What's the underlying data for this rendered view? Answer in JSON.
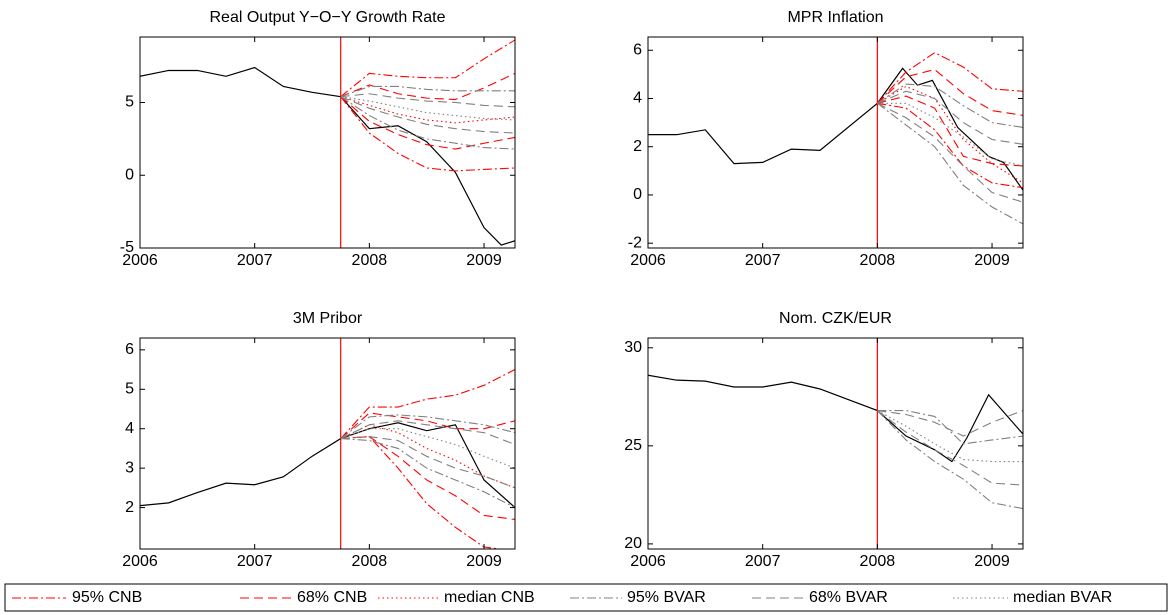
{
  "chart_data": [
    {
      "type": "line",
      "title": "Real Output Y−O−Y Growth Rate",
      "xlim": [
        2006,
        2009.27
      ],
      "xticks": [
        2006,
        2007,
        2008,
        2009
      ],
      "ylim": [
        -5,
        9.5
      ],
      "yticks": [
        -5,
        0,
        5
      ],
      "vline": 2007.75,
      "vline_color": "#ff0000",
      "x": [
        2007.75,
        2008,
        2008.25,
        2008.5,
        2008.75,
        2009,
        2009.27
      ],
      "series": [
        {
          "color": "#000000",
          "dash": "solid",
          "x": [
            2006,
            2006.25,
            2006.5,
            2006.75,
            2007,
            2007.25,
            2007.5,
            2007.75,
            2008,
            2008.25,
            2008.5,
            2008.75,
            2009,
            2009.15,
            2009.27
          ],
          "values": [
            6.8,
            7.2,
            7.2,
            6.8,
            7.4,
            6.1,
            5.7,
            5.4,
            3.2,
            3.4,
            2.3,
            0.2,
            -3.6,
            -4.8,
            -4.5
          ]
        },
        {
          "name": "95% CNB",
          "color": "#ff0000",
          "dash": "dashdot",
          "upper": [
            5.4,
            7.0,
            6.8,
            6.7,
            6.7,
            8.0,
            9.3
          ],
          "lower": [
            5.4,
            2.9,
            1.5,
            0.5,
            0.3,
            0.4,
            0.5
          ]
        },
        {
          "name": "68% CNB",
          "color": "#ff0000",
          "dash": "dashed",
          "upper": [
            5.4,
            6.2,
            5.6,
            5.3,
            5.2,
            6.0,
            7.0
          ],
          "lower": [
            5.4,
            3.7,
            2.8,
            2.1,
            1.8,
            2.2,
            2.6
          ]
        },
        {
          "name": "median CNB",
          "color": "#ff0000",
          "dash": "dotted",
          "values": [
            5.4,
            4.8,
            4.2,
            3.8,
            3.6,
            3.8,
            4.0
          ]
        },
        {
          "name": "95% BVAR",
          "color": "#808080",
          "dash": "dashdot",
          "upper": [
            5.4,
            6.1,
            6.1,
            5.9,
            5.8,
            5.8,
            5.8
          ],
          "lower": [
            5.4,
            4.1,
            3.1,
            2.5,
            2.2,
            1.9,
            1.8
          ]
        },
        {
          "name": "68% BVAR",
          "color": "#808080",
          "dash": "dashed",
          "upper": [
            5.4,
            5.6,
            5.3,
            5.1,
            5.0,
            4.8,
            4.7
          ],
          "lower": [
            5.4,
            4.6,
            4.0,
            3.5,
            3.2,
            3.0,
            2.9
          ]
        },
        {
          "name": "median BVAR",
          "color": "#808080",
          "dash": "dotted",
          "values": [
            5.4,
            5.1,
            4.7,
            4.3,
            4.1,
            3.9,
            3.8
          ]
        }
      ]
    },
    {
      "type": "line",
      "title": "MPR Inflation",
      "xlim": [
        2006,
        2009.27
      ],
      "xticks": [
        2006,
        2007,
        2008,
        2009
      ],
      "ylim": [
        -2.2,
        6.55
      ],
      "yticks": [
        -2,
        0,
        2,
        4,
        6
      ],
      "vline": 2008,
      "vline_color": "#ff0000",
      "x": [
        2008,
        2008.25,
        2008.5,
        2008.75,
        2009,
        2009.27
      ],
      "series": [
        {
          "color": "#000000",
          "dash": "solid",
          "x": [
            2006,
            2006.25,
            2006.5,
            2006.75,
            2007,
            2007.25,
            2007.5,
            2008,
            2008.22,
            2008.35,
            2008.48,
            2008.7,
            2008.97,
            2009.1,
            2009.27
          ],
          "values": [
            2.5,
            2.5,
            2.7,
            1.3,
            1.35,
            1.9,
            1.85,
            3.8,
            5.25,
            4.55,
            4.75,
            2.8,
            1.6,
            1.35,
            0.2
          ]
        },
        {
          "name": "95% CNB",
          "color": "#ff0000",
          "dash": "dashdot",
          "upper": [
            3.8,
            5.1,
            5.9,
            5.3,
            4.4,
            4.3
          ],
          "lower": [
            3.8,
            3.6,
            2.7,
            1.2,
            0.5,
            0.3
          ]
        },
        {
          "name": "68% CNB",
          "color": "#ff0000",
          "dash": "dashed",
          "upper": [
            3.8,
            4.9,
            5.2,
            4.2,
            3.5,
            3.3
          ],
          "lower": [
            3.8,
            4.1,
            3.6,
            1.6,
            1.3,
            1.2
          ]
        },
        {
          "name": "median CNB",
          "color": "#ff0000",
          "dash": "dotted",
          "values": [
            3.8,
            4.5,
            4.0,
            2.3,
            1.3,
            0.5
          ]
        },
        {
          "name": "95% BVAR",
          "color": "#808080",
          "dash": "dashdot",
          "upper": [
            3.8,
            4.6,
            4.5,
            3.7,
            3.0,
            2.8
          ],
          "lower": [
            3.8,
            2.9,
            2.0,
            0.4,
            -0.5,
            -1.2
          ]
        },
        {
          "name": "68% BVAR",
          "color": "#808080",
          "dash": "dashed",
          "upper": [
            3.8,
            4.3,
            4.0,
            3.0,
            2.3,
            2.1
          ],
          "lower": [
            3.8,
            3.2,
            2.4,
            1.2,
            0.1,
            -0.3
          ]
        },
        {
          "name": "median BVAR",
          "color": "#808080",
          "dash": "dotted",
          "values": [
            3.8,
            3.8,
            3.2,
            2.4,
            1.5,
            1.2
          ]
        }
      ]
    },
    {
      "type": "line",
      "title": "3M Pribor",
      "xlim": [
        2006,
        2009.27
      ],
      "xticks": [
        2006,
        2007,
        2008,
        2009
      ],
      "ylim": [
        0.95,
        6.3
      ],
      "yticks": [
        2,
        3,
        4,
        5,
        6
      ],
      "vline": 2007.75,
      "vline_color": "#ff0000",
      "x": [
        2007.75,
        2008,
        2008.25,
        2008.5,
        2008.75,
        2009,
        2009.27
      ],
      "series": [
        {
          "color": "#000000",
          "dash": "solid",
          "x": [
            2006,
            2006.25,
            2006.5,
            2006.75,
            2007,
            2007.25,
            2007.5,
            2007.75,
            2008,
            2008.25,
            2008.5,
            2008.75,
            2009,
            2009.27
          ],
          "values": [
            2.05,
            2.12,
            2.38,
            2.62,
            2.58,
            2.78,
            3.3,
            3.75,
            4.0,
            4.15,
            3.95,
            4.1,
            2.7,
            2.0
          ]
        },
        {
          "name": "95% CNB",
          "color": "#ff0000",
          "dash": "dashdot",
          "upper": [
            3.75,
            4.55,
            4.55,
            4.75,
            4.85,
            5.1,
            5.5
          ],
          "lower": [
            3.75,
            3.8,
            3.0,
            2.1,
            1.5,
            1.0,
            0.9
          ]
        },
        {
          "name": "68% CNB",
          "color": "#ff0000",
          "dash": "dashed",
          "upper": [
            3.75,
            4.4,
            4.3,
            4.2,
            4.0,
            4.0,
            4.2
          ],
          "lower": [
            3.75,
            3.8,
            3.3,
            2.7,
            2.3,
            1.8,
            1.7
          ]
        },
        {
          "name": "median CNB",
          "color": "#ff0000",
          "dash": "dotted",
          "values": [
            3.75,
            4.1,
            3.9,
            3.5,
            3.2,
            2.8,
            2.5
          ]
        },
        {
          "name": "95% BVAR",
          "color": "#808080",
          "dash": "dashdot",
          "upper": [
            3.75,
            4.3,
            4.35,
            4.3,
            4.2,
            4.1,
            3.9
          ],
          "lower": [
            3.75,
            3.7,
            3.5,
            3.0,
            2.7,
            2.4,
            2.0
          ]
        },
        {
          "name": "68% BVAR",
          "color": "#808080",
          "dash": "dashed",
          "upper": [
            3.75,
            4.1,
            4.2,
            4.1,
            4.0,
            3.9,
            3.6
          ],
          "lower": [
            3.75,
            3.8,
            3.7,
            3.3,
            3.0,
            2.8,
            2.5
          ]
        },
        {
          "name": "median BVAR",
          "color": "#808080",
          "dash": "dotted",
          "values": [
            3.75,
            4.0,
            4.0,
            3.8,
            3.6,
            3.3,
            3.0
          ]
        }
      ]
    },
    {
      "type": "line",
      "title": "Nom. CZK/EUR",
      "xlim": [
        2006,
        2009.27
      ],
      "xticks": [
        2006,
        2007,
        2008,
        2009
      ],
      "ylim": [
        19.74,
        30.5
      ],
      "yticks": [
        20,
        25,
        30
      ],
      "vline": 2008,
      "vline_color": "#ff0000",
      "x": [
        2008,
        2008.25,
        2008.5,
        2008.75,
        2009,
        2009.27
      ],
      "series": [
        {
          "color": "#000000",
          "dash": "solid",
          "x": [
            2006,
            2006.25,
            2006.5,
            2006.75,
            2007,
            2007.25,
            2007.5,
            2008,
            2008.25,
            2008.5,
            2008.65,
            2008.78,
            2008.97,
            2009.27
          ],
          "values": [
            28.6,
            28.35,
            28.3,
            28.0,
            28.0,
            28.25,
            27.9,
            26.8,
            25.5,
            24.8,
            24.2,
            25.4,
            27.6,
            25.6
          ]
        },
        {
          "name": "95% BVAR",
          "color": "#808080",
          "dash": "dashdot",
          "upper": [
            26.8,
            26.8,
            26.5,
            25.1,
            25.3,
            25.5
          ],
          "lower": [
            26.8,
            25.3,
            24.2,
            23.3,
            22.1,
            21.8
          ]
        },
        {
          "name": "68% BVAR",
          "color": "#808080",
          "dash": "dashed",
          "upper": [
            26.8,
            26.6,
            26.2,
            25.5,
            26.2,
            26.8
          ],
          "lower": [
            26.8,
            25.7,
            24.8,
            24.0,
            23.1,
            23.0
          ]
        },
        {
          "name": "median BVAR",
          "color": "#808080",
          "dash": "dotted",
          "values": [
            26.8,
            26.0,
            25.1,
            24.3,
            24.2,
            24.2
          ]
        }
      ]
    }
  ]
}
